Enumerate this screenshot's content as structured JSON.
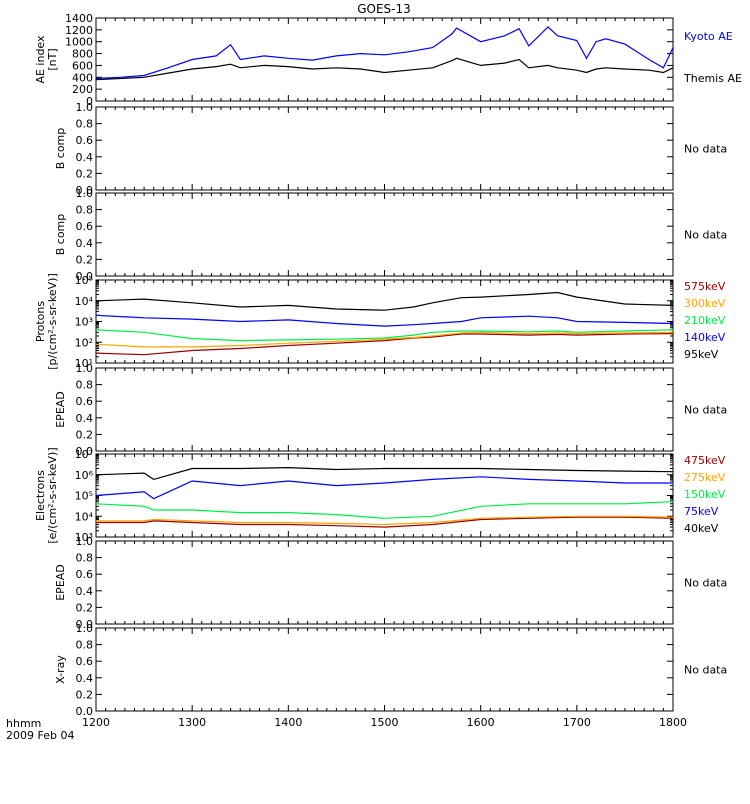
{
  "title": "GOES-13",
  "time_label": "hhmm",
  "date_label": "2009 Feb 04",
  "no_data_text": "No data",
  "x_ticks": [
    "1200",
    "1300",
    "1400",
    "1500",
    "1600",
    "1700",
    "1800"
  ],
  "chart_data": [
    {
      "type": "line",
      "ylabel": [
        "AE index",
        "[nT]"
      ],
      "ylim": [
        0,
        1400
      ],
      "yticks": [
        "0",
        "200",
        "400",
        "600",
        "800",
        "1000",
        "1200",
        "1400"
      ],
      "xlim": [
        1200,
        1800
      ],
      "x": [
        1200,
        1225,
        1250,
        1275,
        1300,
        1325,
        1340,
        1350,
        1375,
        1400,
        1425,
        1450,
        1475,
        1500,
        1525,
        1550,
        1570,
        1575,
        1600,
        1625,
        1640,
        1650,
        1670,
        1680,
        1700,
        1710,
        1720,
        1730,
        1750,
        1775,
        1790,
        1800
      ],
      "series": [
        {
          "name": "Kyoto AE",
          "color": "#0000ff",
          "values": [
            380,
            400,
            430,
            560,
            700,
            760,
            950,
            700,
            760,
            720,
            690,
            760,
            800,
            780,
            830,
            900,
            1130,
            1230,
            1000,
            1100,
            1220,
            930,
            1250,
            1100,
            1020,
            720,
            1000,
            1050,
            960,
            700,
            560,
            900
          ]
        },
        {
          "name": "Themis AE",
          "color": "#000000",
          "values": [
            360,
            380,
            400,
            470,
            540,
            580,
            620,
            560,
            600,
            580,
            540,
            560,
            540,
            480,
            520,
            560,
            680,
            720,
            600,
            640,
            700,
            560,
            600,
            560,
            520,
            480,
            540,
            560,
            540,
            520,
            480,
            560
          ]
        }
      ]
    },
    {
      "type": "line",
      "ylabel": [
        "B comp"
      ],
      "ylim": [
        0,
        1
      ],
      "yticks": [
        "0.0",
        "0.2",
        "0.4",
        "0.6",
        "0.8",
        "1.0"
      ],
      "series": []
    },
    {
      "type": "line",
      "ylabel": [
        "B comp"
      ],
      "ylim": [
        0,
        1
      ],
      "yticks": [
        "0.0",
        "0.2",
        "0.4",
        "0.6",
        "0.8",
        "1.0"
      ],
      "series": []
    },
    {
      "type": "line",
      "ylabel": [
        "Protons",
        "[p/(cm²-s-sr-keV)]"
      ],
      "yscale": "log",
      "ylim": [
        10,
        100000
      ],
      "yticks": [
        "10¹",
        "10²",
        "10³",
        "10⁴",
        "10⁵"
      ],
      "xlim": [
        1200,
        1800
      ],
      "x": [
        1200,
        1250,
        1300,
        1350,
        1400,
        1450,
        1500,
        1530,
        1550,
        1580,
        1600,
        1650,
        1680,
        1700,
        1750,
        1800
      ],
      "series": [
        {
          "name": "575keV",
          "color": "#990000",
          "values": [
            30,
            25,
            40,
            50,
            70,
            90,
            120,
            160,
            180,
            250,
            250,
            220,
            240,
            220,
            250,
            260
          ]
        },
        {
          "name": "300keV",
          "color": "#ffa500",
          "values": [
            80,
            60,
            60,
            70,
            90,
            110,
            140,
            170,
            200,
            280,
            300,
            260,
            280,
            260,
            280,
            300
          ]
        },
        {
          "name": "210keV",
          "color": "#00ee44",
          "values": [
            400,
            300,
            150,
            120,
            130,
            140,
            160,
            220,
            300,
            350,
            350,
            320,
            350,
            300,
            350,
            400
          ]
        },
        {
          "name": "140keV",
          "color": "#0000ff",
          "values": [
            2000,
            1500,
            1300,
            1000,
            1200,
            800,
            600,
            700,
            800,
            1000,
            1500,
            1800,
            1500,
            1000,
            900,
            800
          ]
        },
        {
          "name": "95keV",
          "color": "#000000",
          "values": [
            10000,
            12000,
            8000,
            5000,
            6000,
            4000,
            3500,
            5000,
            8000,
            14000,
            15000,
            20000,
            25000,
            15000,
            7000,
            6000
          ]
        }
      ]
    },
    {
      "type": "line",
      "ylabel": [
        "EPEAD"
      ],
      "ylim": [
        0,
        1
      ],
      "yticks": [
        "0.0",
        "0.2",
        "0.4",
        "0.6",
        "0.8",
        "1.0"
      ],
      "series": []
    },
    {
      "type": "line",
      "ylabel": [
        "Electrons",
        "[e/(cm²-s-sr-keV)]"
      ],
      "yscale": "log",
      "ylim": [
        1000,
        10000000
      ],
      "yticks": [
        "10³",
        "10⁴",
        "10⁵",
        "10⁶",
        "10⁷"
      ],
      "xlim": [
        1200,
        1800
      ],
      "x": [
        1200,
        1250,
        1260,
        1300,
        1350,
        1400,
        1450,
        1500,
        1550,
        1600,
        1650,
        1700,
        1750,
        1800
      ],
      "series": [
        {
          "name": "475keV",
          "color": "#990000",
          "values": [
            5000,
            5000,
            6000,
            5000,
            4000,
            4000,
            3500,
            3000,
            4000,
            7000,
            8000,
            9000,
            9000,
            8000
          ]
        },
        {
          "name": "275keV",
          "color": "#ffa500",
          "values": [
            6000,
            6000,
            7000,
            6000,
            5000,
            5000,
            4500,
            4000,
            5000,
            8000,
            9000,
            10000,
            10000,
            9000
          ]
        },
        {
          "name": "150keV",
          "color": "#00ee44",
          "values": [
            40000,
            30000,
            20000,
            20000,
            15000,
            15000,
            12000,
            8000,
            10000,
            30000,
            40000,
            40000,
            40000,
            50000
          ]
        },
        {
          "name": "75keV",
          "color": "#0000ff",
          "values": [
            100000,
            150000,
            70000,
            500000,
            300000,
            500000,
            300000,
            400000,
            600000,
            800000,
            600000,
            500000,
            400000,
            400000
          ]
        },
        {
          "name": "40keV",
          "color": "#000000",
          "values": [
            1000000,
            1200000,
            600000,
            2000000,
            2000000,
            2200000,
            1800000,
            2000000,
            2000000,
            2000000,
            1800000,
            1600000,
            1500000,
            1400000
          ]
        }
      ]
    },
    {
      "type": "line",
      "ylabel": [
        "EPEAD"
      ],
      "ylim": [
        0,
        1
      ],
      "yticks": [
        "0.0",
        "0.2",
        "0.4",
        "0.6",
        "0.8",
        "1.0"
      ],
      "series": []
    },
    {
      "type": "line",
      "ylabel": [
        "X-ray"
      ],
      "ylim": [
        0,
        1
      ],
      "yticks": [
        "0.0",
        "0.2",
        "0.4",
        "0.6",
        "0.8",
        "1.0"
      ],
      "series": []
    }
  ]
}
